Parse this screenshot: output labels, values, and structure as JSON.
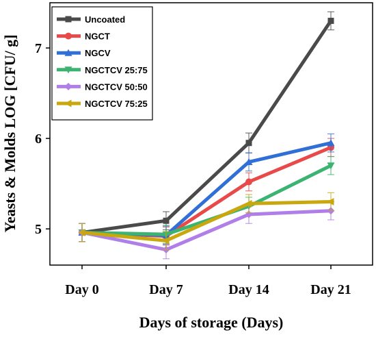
{
  "chart_data": {
    "type": "line",
    "xlabel": "Days of storage (Days)",
    "ylabel": "Yeasts & Molds LOG [CFU/ g]",
    "categories": [
      "Day 0",
      "Day 7",
      "Day 14",
      "Day 21"
    ],
    "ylim": [
      4.6,
      7.5
    ],
    "yticks": [
      "5",
      "6",
      "7"
    ],
    "ytick_values": [
      5,
      6,
      7
    ],
    "legend_position": "top-left",
    "grid": false,
    "series": [
      {
        "name": "Uncoated",
        "color": "#4a4a4a",
        "marker": "square",
        "values": [
          4.96,
          5.09,
          5.95,
          7.3
        ],
        "errors": [
          0.1,
          0.1,
          0.11,
          0.1
        ]
      },
      {
        "name": "NGCT",
        "color": "#e84a4a",
        "marker": "circle",
        "values": [
          4.96,
          4.92,
          5.52,
          5.9
        ],
        "errors": [
          0.1,
          0.1,
          0.1,
          0.1
        ]
      },
      {
        "name": "NGCV",
        "color": "#2f6fd6",
        "marker": "triangle-up",
        "values": [
          4.96,
          4.93,
          5.74,
          5.95
        ],
        "errors": [
          0.1,
          0.1,
          0.1,
          0.1
        ]
      },
      {
        "name": "NGCTCV 25:75",
        "color": "#3cb371",
        "marker": "triangle-down",
        "values": [
          4.96,
          4.94,
          5.25,
          5.7
        ],
        "errors": [
          0.1,
          0.1,
          0.1,
          0.1
        ]
      },
      {
        "name": "NGCTCV 50:50",
        "color": "#b07ee8",
        "marker": "diamond",
        "values": [
          4.96,
          4.77,
          5.16,
          5.2
        ],
        "errors": [
          0.1,
          0.1,
          0.1,
          0.1
        ]
      },
      {
        "name": "NGCTCV 75:25",
        "color": "#c9a80f",
        "marker": "triangle-left",
        "values": [
          4.96,
          4.87,
          5.28,
          5.3
        ],
        "errors": [
          0.1,
          0.1,
          0.1,
          0.1
        ]
      }
    ]
  }
}
